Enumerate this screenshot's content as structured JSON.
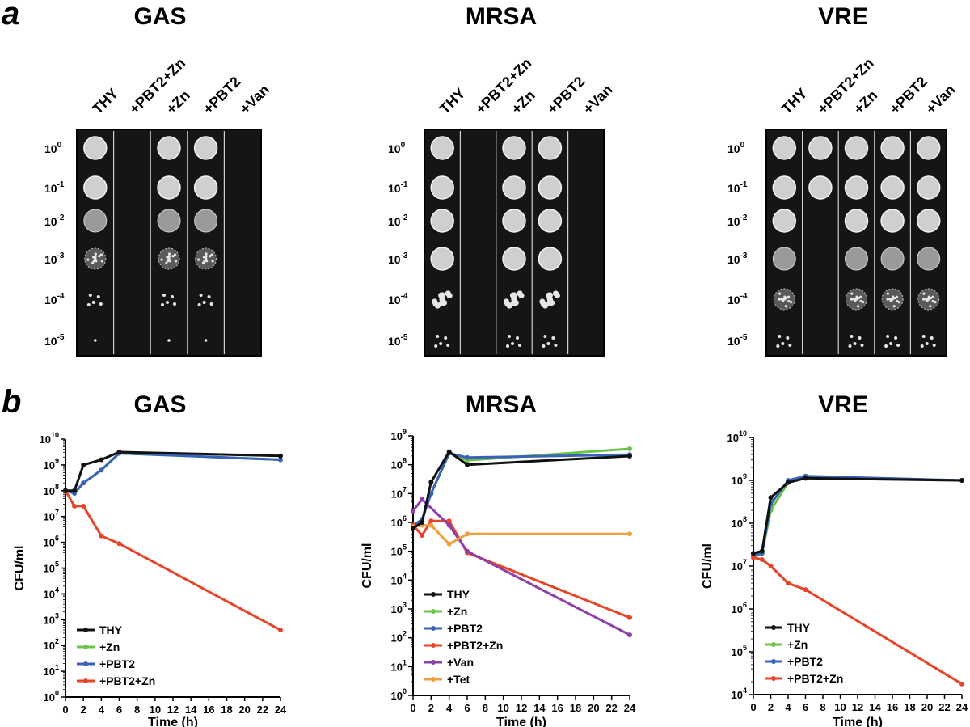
{
  "panels": {
    "a": "a",
    "b": "b"
  },
  "plates": [
    {
      "title": "GAS",
      "columns": [
        "THY",
        "+PBT2+Zn",
        "+Zn",
        "+PBT2",
        "+Van"
      ],
      "dilutions": [
        {
          "base": "10",
          "exp": "0"
        },
        {
          "base": "10",
          "exp": "-1"
        },
        {
          "base": "10",
          "exp": "-2"
        },
        {
          "base": "10",
          "exp": "-3"
        },
        {
          "base": "10",
          "exp": "-4"
        },
        {
          "base": "10",
          "exp": "-5"
        }
      ],
      "growth": [
        [
          "full",
          "full",
          "lawn",
          "sparse",
          "few",
          "single"
        ],
        [
          "none",
          "none",
          "none",
          "none",
          "none",
          "none"
        ],
        [
          "full",
          "full",
          "lawn",
          "sparse",
          "few",
          "single"
        ],
        [
          "full",
          "full",
          "lawn",
          "sparse",
          "few",
          "single"
        ],
        [
          "none",
          "none",
          "none",
          "none",
          "none",
          "none"
        ]
      ]
    },
    {
      "title": "MRSA",
      "columns": [
        "THY",
        "+PBT2+Zn",
        "+Zn",
        "+PBT2",
        "+Van"
      ],
      "dilutions": [
        {
          "base": "10",
          "exp": "0"
        },
        {
          "base": "10",
          "exp": "-1"
        },
        {
          "base": "10",
          "exp": "-2"
        },
        {
          "base": "10",
          "exp": "-3"
        },
        {
          "base": "10",
          "exp": "-4"
        },
        {
          "base": "10",
          "exp": "-5"
        }
      ],
      "growth": [
        [
          "full",
          "full",
          "full",
          "full",
          "colonies",
          "few"
        ],
        [
          "none",
          "none",
          "none",
          "none",
          "none",
          "none"
        ],
        [
          "full",
          "full",
          "full",
          "full",
          "colonies",
          "few"
        ],
        [
          "full",
          "full",
          "full",
          "full",
          "colonies",
          "few"
        ],
        [
          "none",
          "none",
          "none",
          "none",
          "none",
          "none"
        ]
      ]
    },
    {
      "title": "VRE",
      "columns": [
        "THY",
        "+PBT2+Zn",
        "+Zn",
        "+PBT2",
        "+Van"
      ],
      "dilutions": [
        {
          "base": "10",
          "exp": "0"
        },
        {
          "base": "10",
          "exp": "-1"
        },
        {
          "base": "10",
          "exp": "-2"
        },
        {
          "base": "10",
          "exp": "-3"
        },
        {
          "base": "10",
          "exp": "-4"
        },
        {
          "base": "10",
          "exp": "-5"
        }
      ],
      "growth": [
        [
          "full",
          "full",
          "full",
          "lawn",
          "sparse",
          "few"
        ],
        [
          "full",
          "full",
          "none",
          "none",
          "none",
          "none"
        ],
        [
          "full",
          "full",
          "full",
          "lawn",
          "sparse",
          "few"
        ],
        [
          "full",
          "full",
          "full",
          "lawn",
          "sparse",
          "few"
        ],
        [
          "full",
          "full",
          "full",
          "lawn",
          "sparse",
          "few"
        ]
      ]
    }
  ],
  "colors": {
    "THY": "#111111",
    "+Zn": "#6cc24a",
    "+PBT2": "#3a63b8",
    "+PBT2+Zn": "#e8442a",
    "+Van": "#8e3fa8",
    "+Tet": "#f0a040",
    "plate_bg": "#151515",
    "colony": "#e6e6e6"
  },
  "chart_data": [
    {
      "type": "line",
      "title": "GAS",
      "xlabel": "Time (h)",
      "ylabel": "CFU/ml",
      "yscale": "log",
      "ylim": [
        0,
        10
      ],
      "xlim": [
        0,
        24
      ],
      "xticks": [
        "0",
        "2",
        "4",
        "6",
        "8",
        "10",
        "12",
        "14",
        "16",
        "18",
        "20",
        "22",
        "24"
      ],
      "yticks": [
        {
          "base": "10",
          "exp": "0"
        },
        {
          "base": "10",
          "exp": "1"
        },
        {
          "base": "10",
          "exp": "2"
        },
        {
          "base": "10",
          "exp": "3"
        },
        {
          "base": "10",
          "exp": "4"
        },
        {
          "base": "10",
          "exp": "5"
        },
        {
          "base": "10",
          "exp": "6"
        },
        {
          "base": "10",
          "exp": "7"
        },
        {
          "base": "10",
          "exp": "8"
        },
        {
          "base": "10",
          "exp": "9"
        },
        {
          "base": "10",
          "exp": "10"
        }
      ],
      "legend_position": "bottom-left",
      "series": [
        {
          "name": "THY",
          "x": [
            0,
            1,
            2,
            4,
            6,
            24
          ],
          "log10": [
            8.0,
            8.0,
            9.0,
            9.2,
            9.5,
            9.35
          ]
        },
        {
          "name": "+Zn",
          "x": [
            0,
            1,
            2,
            4,
            6,
            24
          ],
          "log10": [
            8.0,
            7.9,
            8.3,
            8.8,
            9.45,
            9.2
          ]
        },
        {
          "name": "+PBT2",
          "x": [
            0,
            1,
            2,
            4,
            6,
            24
          ],
          "log10": [
            8.0,
            7.9,
            8.3,
            8.8,
            9.45,
            9.2
          ]
        },
        {
          "name": "+PBT2+Zn",
          "x": [
            0,
            1,
            2,
            4,
            6,
            24
          ],
          "log10": [
            8.0,
            7.4,
            7.4,
            6.25,
            5.95,
            2.6
          ]
        }
      ]
    },
    {
      "type": "line",
      "title": "MRSA",
      "xlabel": "Time (h)",
      "ylabel": "CFU/ml",
      "yscale": "log",
      "ylim": [
        0,
        9
      ],
      "xlim": [
        0,
        24
      ],
      "xticks": [
        "0",
        "2",
        "4",
        "6",
        "8",
        "10",
        "12",
        "14",
        "16",
        "18",
        "20",
        "22",
        "24"
      ],
      "yticks": [
        {
          "base": "10",
          "exp": "0"
        },
        {
          "base": "10",
          "exp": "1"
        },
        {
          "base": "10",
          "exp": "2"
        },
        {
          "base": "10",
          "exp": "3"
        },
        {
          "base": "10",
          "exp": "4"
        },
        {
          "base": "10",
          "exp": "5"
        },
        {
          "base": "10",
          "exp": "6"
        },
        {
          "base": "10",
          "exp": "7"
        },
        {
          "base": "10",
          "exp": "8"
        },
        {
          "base": "10",
          "exp": "9"
        }
      ],
      "legend_position": "bottom-left",
      "series": [
        {
          "name": "THY",
          "x": [
            0,
            1,
            2,
            4,
            6,
            24
          ],
          "log10": [
            5.8,
            6.0,
            7.4,
            8.45,
            8.0,
            8.3
          ]
        },
        {
          "name": "+Zn",
          "x": [
            0,
            1,
            2,
            4,
            6,
            24
          ],
          "log10": [
            5.9,
            6.1,
            7.0,
            8.4,
            8.15,
            8.55
          ]
        },
        {
          "name": "+PBT2",
          "x": [
            0,
            1,
            2,
            4,
            6,
            24
          ],
          "log10": [
            5.9,
            6.1,
            7.0,
            8.4,
            8.25,
            8.35
          ]
        },
        {
          "name": "+PBT2+Zn",
          "x": [
            0,
            1,
            2,
            4,
            6,
            24
          ],
          "log10": [
            5.9,
            5.55,
            6.05,
            6.05,
            4.95,
            2.7
          ]
        },
        {
          "name": "+Van",
          "x": [
            0,
            1,
            4,
            6,
            24
          ],
          "log10": [
            6.4,
            6.8,
            5.9,
            5.0,
            2.1
          ]
        },
        {
          "name": "+Tet",
          "x": [
            0,
            1,
            2,
            4,
            6,
            24
          ],
          "log10": [
            5.85,
            5.9,
            5.9,
            5.25,
            5.6,
            5.6
          ]
        }
      ]
    },
    {
      "type": "line",
      "title": "VRE",
      "xlabel": "Time (h)",
      "ylabel": "CFU/ml",
      "yscale": "log",
      "ylim": [
        4,
        10
      ],
      "xlim": [
        0,
        24
      ],
      "xticks": [
        "0",
        "2",
        "4",
        "6",
        "8",
        "10",
        "12",
        "14",
        "16",
        "18",
        "20",
        "22",
        "24"
      ],
      "yticks": [
        {
          "base": "10",
          "exp": "4"
        },
        {
          "base": "10",
          "exp": "5"
        },
        {
          "base": "10",
          "exp": "6"
        },
        {
          "base": "10",
          "exp": "7"
        },
        {
          "base": "10",
          "exp": "8"
        },
        {
          "base": "10",
          "exp": "9"
        },
        {
          "base": "10",
          "exp": "10"
        }
      ],
      "legend_position": "bottom-left",
      "series": [
        {
          "name": "THY",
          "x": [
            0,
            1,
            2,
            4,
            6,
            24
          ],
          "log10": [
            7.3,
            7.35,
            8.6,
            8.95,
            9.05,
            9.0
          ]
        },
        {
          "name": "+Zn",
          "x": [
            0,
            1,
            2,
            4,
            6,
            24
          ],
          "log10": [
            7.2,
            7.3,
            8.3,
            8.95,
            9.05,
            9.0
          ]
        },
        {
          "name": "+PBT2",
          "x": [
            0,
            1,
            2,
            4,
            6,
            24
          ],
          "log10": [
            7.25,
            7.3,
            8.45,
            9.0,
            9.1,
            9.0
          ]
        },
        {
          "name": "+PBT2+Zn",
          "x": [
            0,
            1,
            2,
            4,
            6,
            24
          ],
          "log10": [
            7.2,
            7.15,
            7.0,
            6.6,
            6.45,
            4.25
          ]
        }
      ]
    }
  ]
}
